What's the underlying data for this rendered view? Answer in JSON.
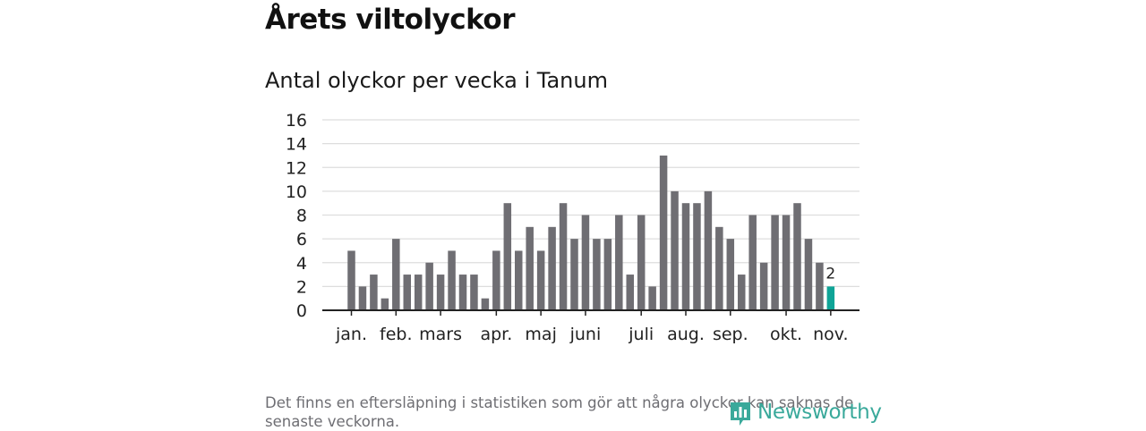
{
  "heading": "Årets viltolyckor",
  "chart_data": {
    "type": "bar",
    "title": "Antal olyckor per vecka i Tanum",
    "xlabel": "",
    "ylabel": "",
    "ylim": [
      0,
      16
    ],
    "yticks": [
      "0",
      "2",
      "4",
      "6",
      "8",
      "10",
      "12",
      "14",
      "16"
    ],
    "month_labels": [
      {
        "label": "jan.",
        "week": 1
      },
      {
        "label": "feb.",
        "week": 5
      },
      {
        "label": "mars",
        "week": 9
      },
      {
        "label": "apr.",
        "week": 14
      },
      {
        "label": "maj",
        "week": 18
      },
      {
        "label": "juni",
        "week": 22
      },
      {
        "label": "juli",
        "week": 27
      },
      {
        "label": "aug.",
        "week": 31
      },
      {
        "label": "sep.",
        "week": 35
      },
      {
        "label": "okt.",
        "week": 40
      },
      {
        "label": "nov.",
        "week": 44
      }
    ],
    "weeks": [
      1,
      2,
      3,
      4,
      5,
      6,
      7,
      8,
      9,
      10,
      11,
      12,
      13,
      14,
      15,
      16,
      17,
      18,
      19,
      20,
      21,
      22,
      23,
      24,
      25,
      26,
      27,
      28,
      29,
      30,
      31,
      32,
      33,
      34,
      35,
      36,
      37,
      38,
      39,
      40,
      41,
      42,
      43,
      44
    ],
    "values": [
      5,
      2,
      3,
      1,
      6,
      3,
      3,
      4,
      3,
      5,
      3,
      3,
      1,
      5,
      9,
      5,
      7,
      5,
      7,
      9,
      6,
      8,
      6,
      6,
      8,
      3,
      8,
      2,
      13,
      10,
      9,
      9,
      10,
      7,
      6,
      3,
      8,
      4,
      8,
      8,
      9,
      6,
      4,
      2
    ],
    "highlight_week": 44,
    "highlight_label": "2",
    "grid": true,
    "colors": {
      "bar": "#6f6e73",
      "highlight": "#0fa497",
      "grid": "#dddddd",
      "axis": "#222222",
      "text": "#222222"
    }
  },
  "footnote": "Det finns en eftersläpning i statistiken som gör att några olyckor kan saknas de senaste veckorna.",
  "logo": {
    "text": "Newsworthy",
    "icon": "newsworthy-bar-icon",
    "color": "#3aa99b"
  }
}
